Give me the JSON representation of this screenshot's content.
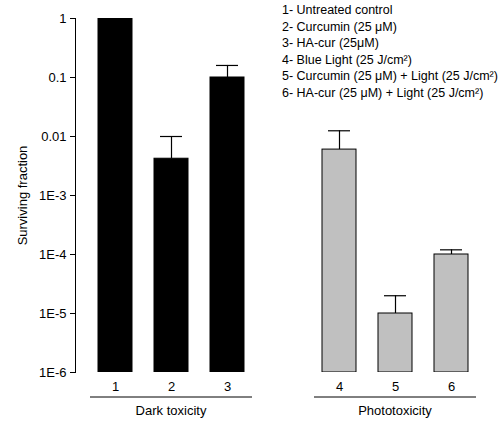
{
  "chart_data": {
    "type": "bar",
    "y_label": "Surviving fraction",
    "categories": [
      "1",
      "2",
      "3",
      "4",
      "5",
      "6"
    ],
    "values": [
      1,
      0.0042,
      0.1,
      0.006,
      1e-05,
      0.0001
    ],
    "errors": [
      null,
      0.0058,
      0.06,
      0.0065,
      1e-05,
      2e-05
    ],
    "colors": [
      "#000000",
      "#000000",
      "#000000",
      "#c0c0c0",
      "#c0c0c0",
      "#c0c0c0"
    ],
    "log": "y",
    "ylim": [
      1e-06,
      1
    ],
    "yticks": [
      1,
      0.1,
      0.01,
      {
        "value": 0.001,
        "label": "1E-3"
      },
      {
        "value": 0.0001,
        "label": "1E-4"
      },
      {
        "value": 1e-05,
        "label": "1E-5"
      },
      {
        "value": 1e-06,
        "label": "1E-6"
      }
    ],
    "groups": [
      {
        "label": "Dark toxicity",
        "categories": [
          "1",
          "2",
          "3"
        ]
      },
      {
        "label": "Phototoxicity",
        "categories": [
          "4",
          "5",
          "6"
        ]
      }
    ],
    "annotations": [
      "1- Untreated control",
      "2- Curcumin (25 μM)",
      "3- HA-cur (25μM)",
      "4- Blue Light (25 J/cm²)",
      "5- Curcumin (25 μM) + Light (25 J/cm²)",
      "6- HA-cur (25 μM) + Light (25 J/cm²)"
    ]
  }
}
